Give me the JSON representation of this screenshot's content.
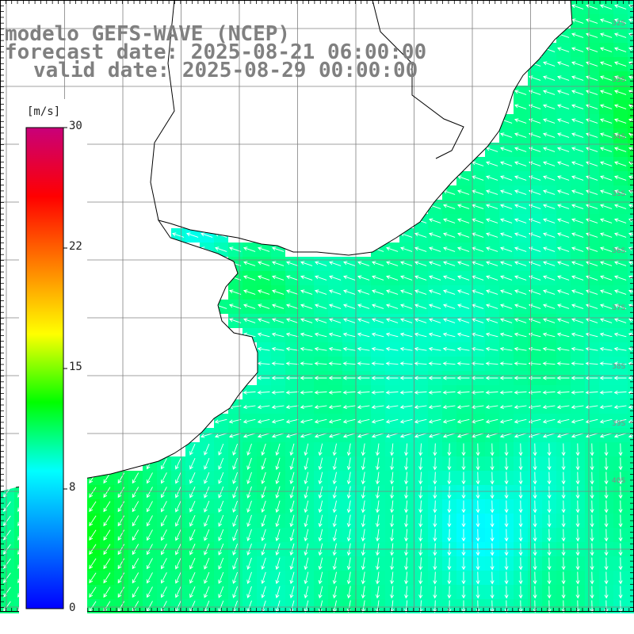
{
  "titles": {
    "line1": "modelo GEFS-WAVE (NCEP)",
    "line2": "forecast date: 2025-08-21 06:00:00",
    "line3": "valid date: 2025-08-29 00:00:00"
  },
  "colorbar": {
    "unit": "[m/s]",
    "ticks": [
      "30",
      "22",
      "15",
      "8",
      "0"
    ],
    "stops": [
      "#c8007a",
      "#ff0000",
      "#ff7f00",
      "#ffff00",
      "#00ff00",
      "#00ffff",
      "#0080ff",
      "#0000ff"
    ]
  },
  "lat_labels": [
    "32S",
    "33S",
    "34S",
    "35S",
    "36S",
    "37S",
    "38S",
    "39S",
    "40S"
  ],
  "colors": {
    "land": "#ffffff",
    "coast": "#000000",
    "grid": "#808080",
    "arrow": "#ffffff"
  },
  "field": {
    "name": "wind speed",
    "approx_range_ms": [
      8,
      13
    ]
  }
}
